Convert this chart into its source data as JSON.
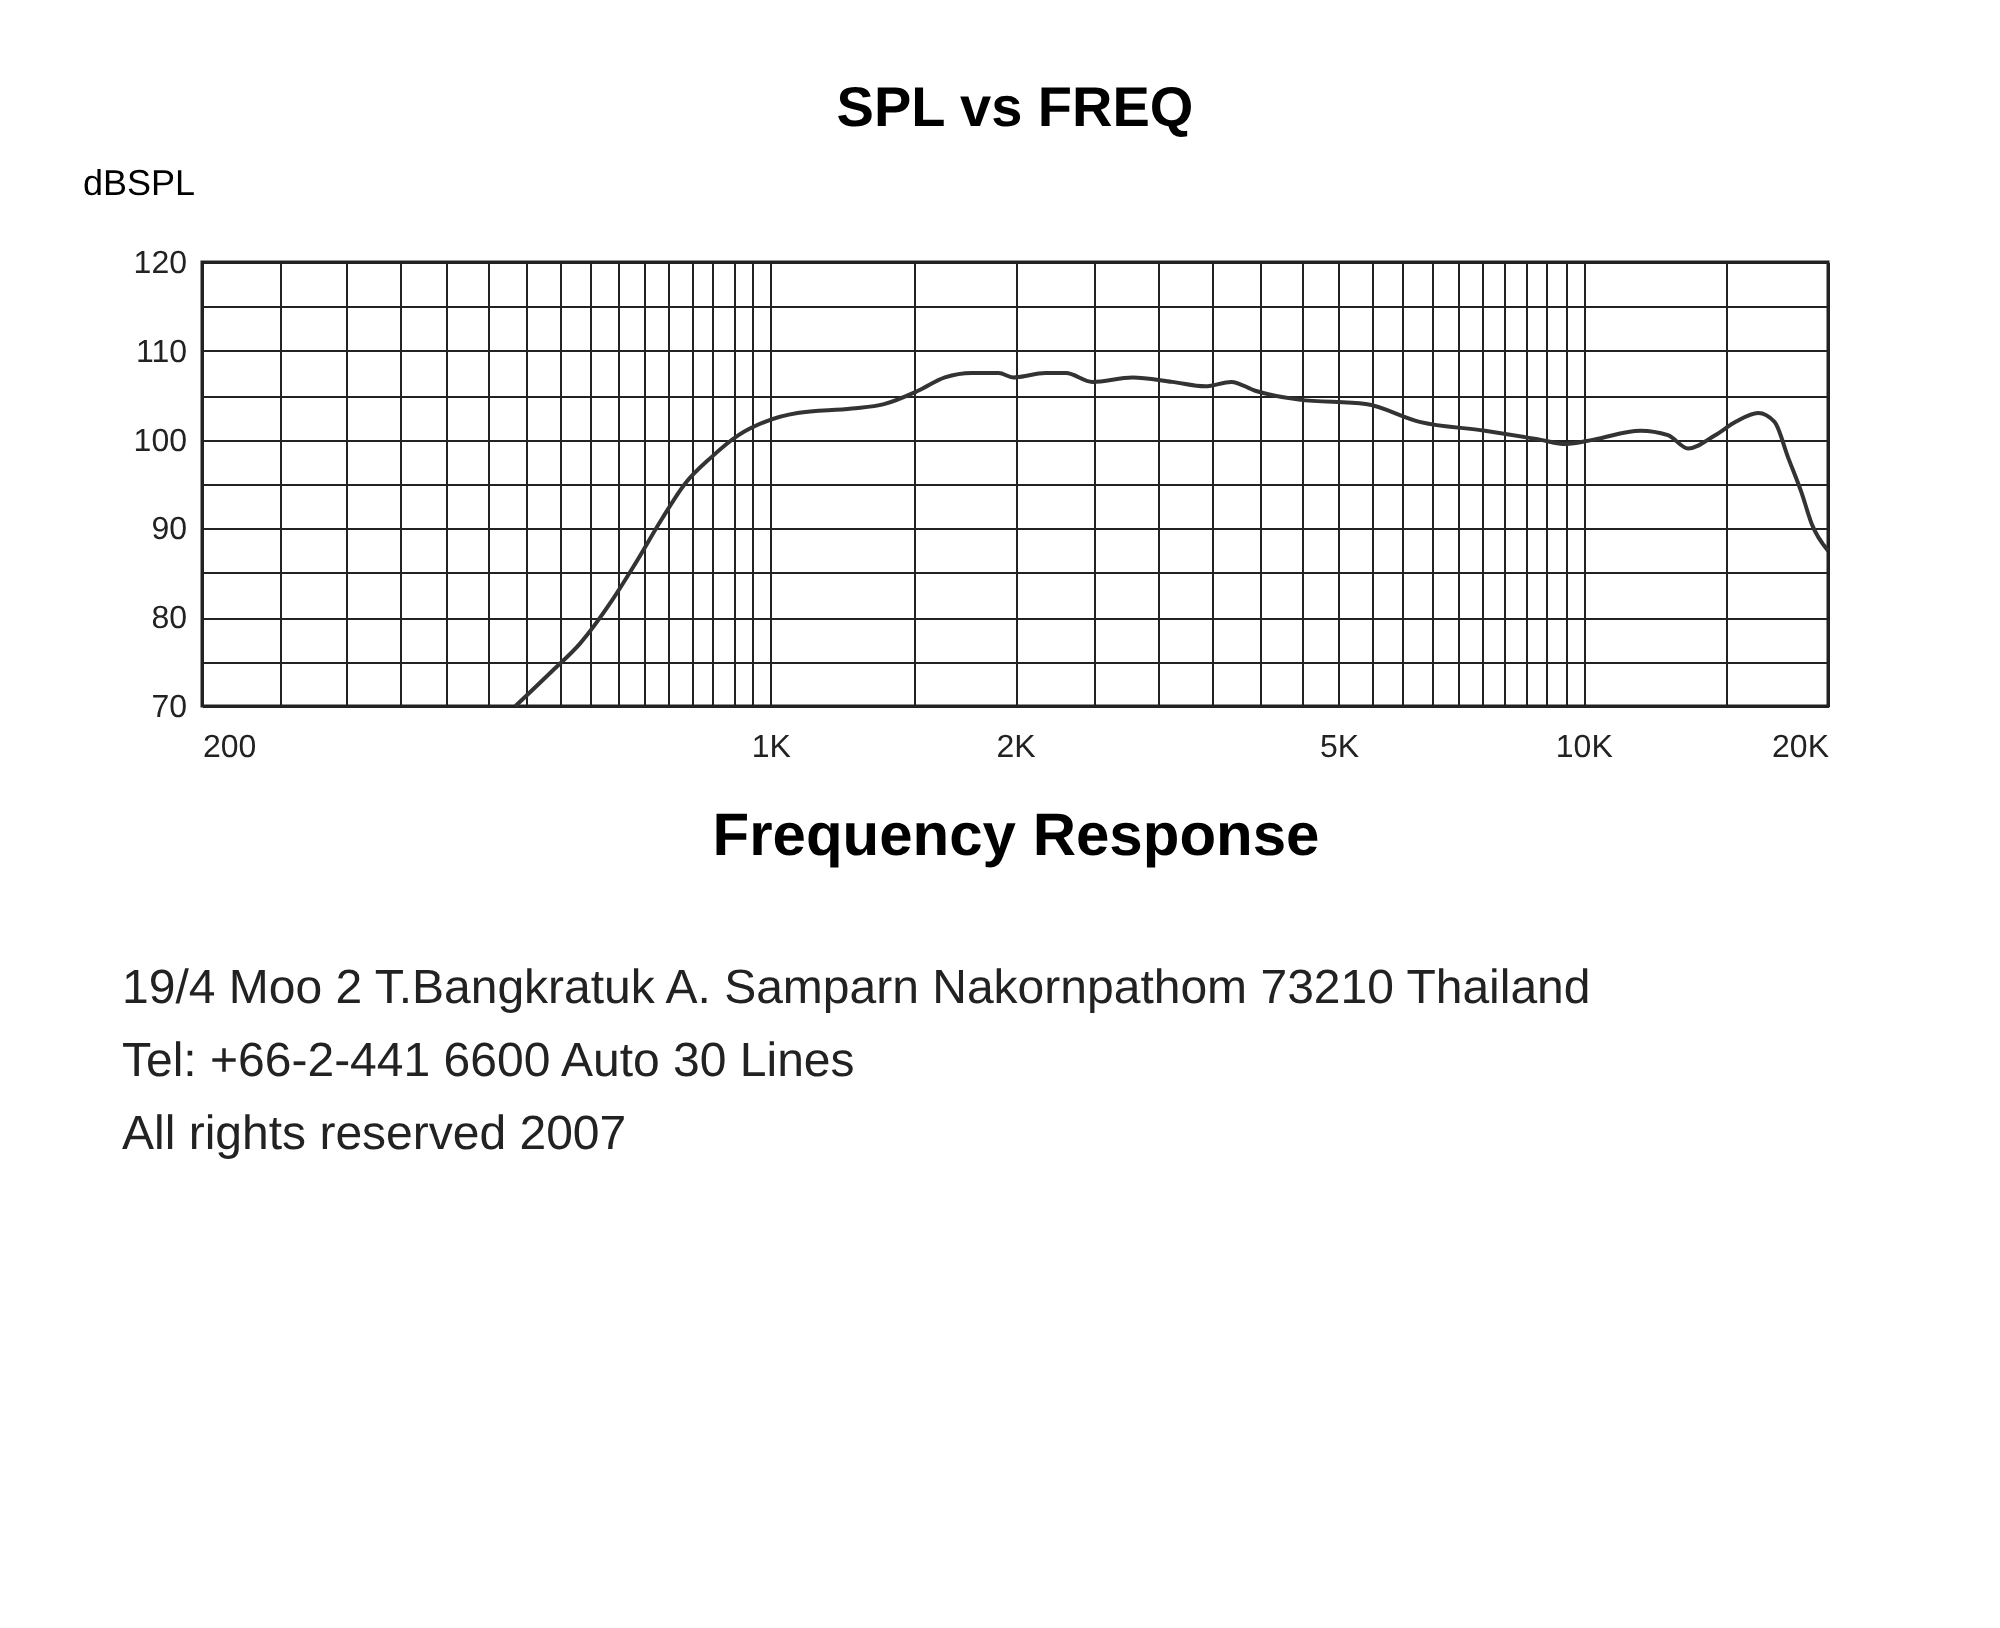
{
  "chart_data": {
    "type": "line",
    "title": "SPL vs FREQ",
    "xlabel": "Frequency Response",
    "ylabel": "dBSPL",
    "log": "x",
    "grid": true,
    "legend": false,
    "marker": "none",
    "line_style": "solid",
    "xlim": [
      200,
      20000
    ],
    "xticks": [
      200,
      {
        "value": 250,
        "label": null
      },
      {
        "value": 300,
        "label": null
      },
      {
        "value": 350,
        "label": null
      },
      {
        "value": 400,
        "label": null
      },
      {
        "value": 450,
        "label": null
      },
      {
        "value": 500,
        "label": null
      },
      {
        "value": 550,
        "label": null
      },
      {
        "value": 600,
        "label": null
      },
      {
        "value": 650,
        "label": null
      },
      {
        "value": 700,
        "label": null
      },
      {
        "value": 750,
        "label": null
      },
      {
        "value": 800,
        "label": null
      },
      {
        "value": 850,
        "label": null
      },
      {
        "value": 900,
        "label": null
      },
      {
        "value": 950,
        "label": null
      },
      {
        "value": 1000,
        "label": "1K"
      },
      {
        "value": 1500,
        "label": null
      },
      {
        "value": 2000,
        "label": "2K"
      },
      {
        "value": 2500,
        "label": null
      },
      {
        "value": 3000,
        "label": null
      },
      {
        "value": 3500,
        "label": null
      },
      {
        "value": 4000,
        "label": null
      },
      {
        "value": 4500,
        "label": null
      },
      {
        "value": 5000,
        "label": "5K"
      },
      {
        "value": 5500,
        "label": null
      },
      {
        "value": 6000,
        "label": null
      },
      {
        "value": 6500,
        "label": null
      },
      {
        "value": 7000,
        "label": null
      },
      {
        "value": 7500,
        "label": null
      },
      {
        "value": 8000,
        "label": null
      },
      {
        "value": 8500,
        "label": null
      },
      {
        "value": 9000,
        "label": null
      },
      {
        "value": 9500,
        "label": null
      },
      {
        "value": 10000,
        "label": "10K"
      },
      {
        "value": 15000,
        "label": null
      },
      {
        "value": 20000,
        "label": "20K"
      }
    ],
    "ylim": [
      70,
      120
    ],
    "yticks": [
      70,
      {
        "value": 75,
        "label": null
      },
      80,
      {
        "value": 85,
        "label": null
      },
      90,
      {
        "value": 95,
        "label": null
      },
      100,
      {
        "value": 105,
        "label": null
      },
      110,
      {
        "value": 115,
        "label": null
      },
      120
    ],
    "series": [
      {
        "color": "#333333",
        "x": [
          486,
          540,
          583,
          640,
          682,
          735,
          785,
          846,
          914,
          985,
          1080,
          1260,
          1380,
          1520,
          1640,
          1770,
          1910,
          1990,
          2180,
          2310,
          2490,
          2790,
          3120,
          3430,
          3690,
          3950,
          4470,
          5400,
          6290,
          7570,
          8840,
          9520,
          10300,
          11760,
          12710,
          13460,
          14530,
          15400,
          16410,
          17190,
          17860,
          18560,
          19100,
          20000
        ],
        "values": [
          70,
          74,
          77,
          82,
          86,
          91,
          95,
          98,
          100.5,
          102,
          103,
          103.5,
          104,
          105.5,
          107,
          107.5,
          107.5,
          107,
          107.5,
          107.5,
          106.5,
          107,
          106.5,
          106,
          106.5,
          105.5,
          104.5,
          104,
          102,
          101,
          100,
          99.5,
          100,
          101,
          100.5,
          99,
          100.5,
          102,
          103,
          102,
          98,
          94,
          90.5,
          87.5
        ]
      }
    ],
    "annotations": [
      "19/4 Moo 2 T.Bangkratuk A. Samparn Nakornpathom 73210 Thailand",
      "Tel: +66-2-441 6600 Auto 30 Lines",
      "All rights reserved 2007"
    ]
  }
}
